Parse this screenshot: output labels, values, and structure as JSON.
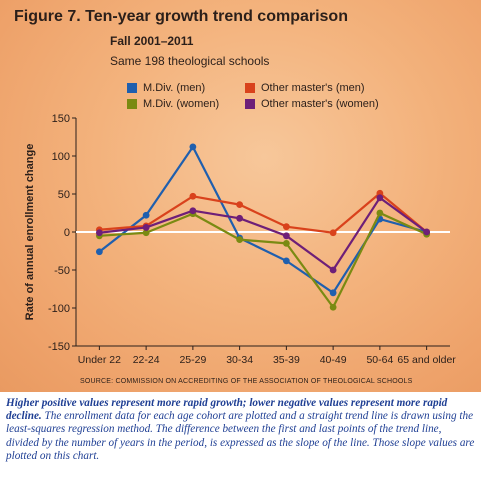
{
  "title": "Figure 7. Ten-year growth trend comparison",
  "subtitle_period": "Fall 2001–2011",
  "subtitle_sample": "Same 198 theological schools",
  "source": "SOURCE: COMMISSION ON ACCREDITING OF THE ASSOCIATION OF THEOLOGICAL SCHOOLS",
  "caption": {
    "bold": "Higher positive values represent more rapid growth; lower negative values represent more rapid decline.",
    "rest": " The enrollment data for each age cohort are plotted and a straight trend line is drawn using the least-squares regression method. The difference between the first and last points of the trend line, divided by the number of years in the period, is expressed as the slope of the line. Those slope values are plotted on this chart."
  },
  "colors": {
    "mdiv_men": "#1f5fae",
    "mdiv_women": "#7a8a12",
    "other_men": "#d9421c",
    "other_women": "#6e1f78",
    "zero_line": "#ffffff"
  },
  "chart_data": {
    "type": "line",
    "ylabel": "Rate of annual enrollment change",
    "xlabel": "",
    "categories": [
      "Under 22",
      "22-24",
      "25-29",
      "30-34",
      "35-39",
      "40-49",
      "50-64",
      "65 and older"
    ],
    "ylim": [
      -150,
      150
    ],
    "yticks": [
      150,
      100,
      50,
      0,
      -50,
      -100,
      -150
    ],
    "legend_position": "top",
    "series": [
      {
        "name": "M.Div. (men)",
        "color_key": "mdiv_men",
        "values": [
          -26,
          22,
          112,
          -8,
          -38,
          -80,
          17,
          0
        ]
      },
      {
        "name": "Other master's (men)",
        "color_key": "other_men",
        "values": [
          3,
          8,
          47,
          36,
          7,
          -1,
          51,
          0
        ]
      },
      {
        "name": "M.Div. (women)",
        "color_key": "mdiv_women",
        "values": [
          -5,
          -1,
          24,
          -10,
          -15,
          -99,
          25,
          -3
        ]
      },
      {
        "name": "Other master's (women)",
        "color_key": "other_women",
        "values": [
          -1,
          6,
          28,
          18,
          -5,
          -50,
          45,
          0
        ]
      }
    ]
  }
}
